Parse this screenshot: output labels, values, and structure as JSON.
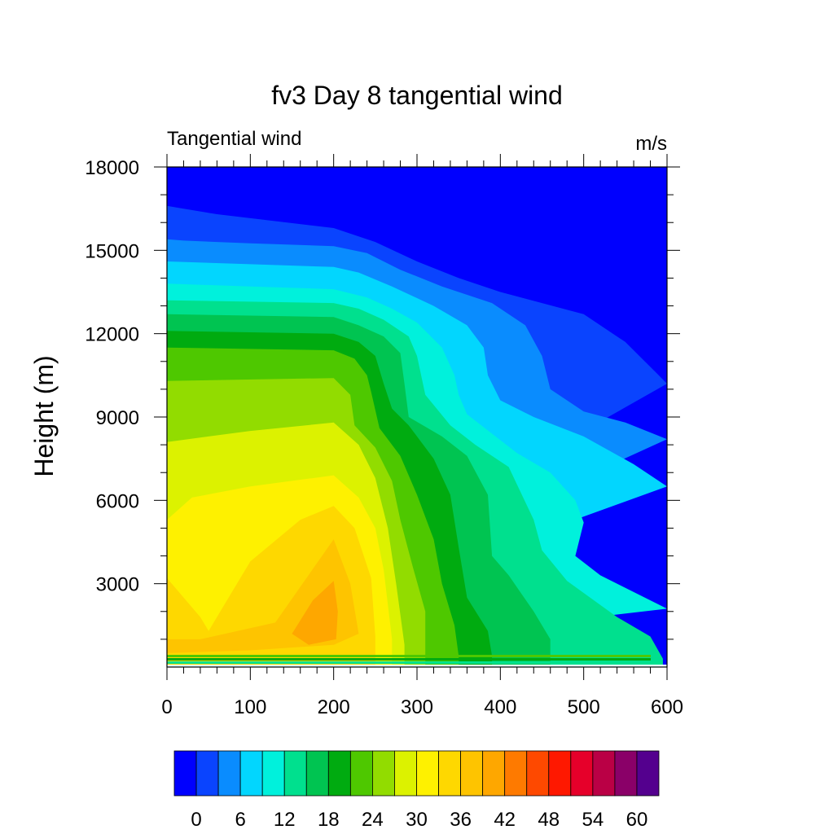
{
  "chart_data": {
    "type": "contour",
    "title": "fv3 Day 8 tangential wind",
    "subtitle_left": "Tangential wind",
    "subtitle_right": "m/s",
    "xlabel": "",
    "ylabel": "Height (m)",
    "xlim": [
      0,
      600
    ],
    "ylim": [
      0,
      18000
    ],
    "x_ticks": [
      0,
      100,
      200,
      300,
      400,
      500,
      600
    ],
    "y_ticks": [
      3000,
      6000,
      9000,
      12000,
      15000,
      18000
    ],
    "colorbar": {
      "levels": [
        0,
        3,
        6,
        9,
        12,
        15,
        18,
        21,
        24,
        27,
        30,
        33,
        36,
        39,
        42,
        45,
        48,
        51,
        54,
        57,
        60
      ],
      "tick_labels": [
        0,
        6,
        12,
        18,
        24,
        30,
        36,
        42,
        48,
        54,
        60
      ],
      "colors": [
        "#0000fe",
        "#0a44fe",
        "#0a8cfe",
        "#02d6fe",
        "#00f1dc",
        "#00e08e",
        "#00c451",
        "#00ab10",
        "#4ec800",
        "#92dc00",
        "#dcf200",
        "#fef100",
        "#fed800",
        "#fec400",
        "#fea700",
        "#fe7a00",
        "#fe4900",
        "#fe1800",
        "#e6002a",
        "#ba0045",
        "#8a0068",
        "#54008e"
      ]
    },
    "contours": [
      {
        "level": 0,
        "points": [
          [
            0,
            16600
          ],
          [
            20,
            16500
          ],
          [
            60,
            16300
          ],
          [
            130,
            16050
          ],
          [
            200,
            15800
          ],
          [
            250,
            15300
          ],
          [
            300,
            14600
          ],
          [
            350,
            14000
          ],
          [
            400,
            13500
          ],
          [
            450,
            13100
          ],
          [
            500,
            12700
          ],
          [
            550,
            11700
          ],
          [
            590,
            10500
          ],
          [
            600,
            10200
          ]
        ]
      },
      {
        "level": 3,
        "points": [
          [
            0,
            15400
          ],
          [
            20,
            15350
          ],
          [
            100,
            15250
          ],
          [
            200,
            15150
          ],
          [
            240,
            14900
          ],
          [
            280,
            14300
          ],
          [
            330,
            13700
          ],
          [
            390,
            13100
          ],
          [
            430,
            12300
          ],
          [
            450,
            11200
          ],
          [
            460,
            10000
          ],
          [
            500,
            9200
          ],
          [
            550,
            8800
          ],
          [
            600,
            8200
          ]
        ]
      },
      {
        "level": 6,
        "points": [
          [
            0,
            14600
          ],
          [
            100,
            14500
          ],
          [
            200,
            14400
          ],
          [
            230,
            14200
          ],
          [
            270,
            13700
          ],
          [
            320,
            13000
          ],
          [
            360,
            12300
          ],
          [
            380,
            11500
          ],
          [
            385,
            10500
          ],
          [
            400,
            9600
          ],
          [
            440,
            9000
          ],
          [
            500,
            8300
          ],
          [
            560,
            7300
          ],
          [
            600,
            6500
          ]
        ]
      },
      {
        "level": 9,
        "points": [
          [
            0,
            13800
          ],
          [
            100,
            13700
          ],
          [
            200,
            13600
          ],
          [
            240,
            13300
          ],
          [
            270,
            12900
          ],
          [
            300,
            12400
          ],
          [
            330,
            11500
          ],
          [
            345,
            10500
          ],
          [
            350,
            9800
          ],
          [
            360,
            9100
          ],
          [
            390,
            8400
          ],
          [
            420,
            7700
          ],
          [
            460,
            7000
          ],
          [
            490,
            6000
          ],
          [
            500,
            5200
          ],
          [
            490,
            4000
          ],
          [
            520,
            3300
          ],
          [
            600,
            2100
          ]
        ]
      },
      {
        "level": 12,
        "points": [
          [
            0,
            13200
          ],
          [
            200,
            13100
          ],
          [
            230,
            12900
          ],
          [
            260,
            12500
          ],
          [
            290,
            11900
          ],
          [
            300,
            11200
          ],
          [
            310,
            9800
          ],
          [
            340,
            8700
          ],
          [
            370,
            8000
          ],
          [
            410,
            7200
          ],
          [
            440,
            5300
          ],
          [
            450,
            4200
          ],
          [
            480,
            3100
          ],
          [
            540,
            1800
          ],
          [
            580,
            1100
          ],
          [
            595,
            300
          ]
        ]
      },
      {
        "level": 15,
        "points": [
          [
            0,
            12700
          ],
          [
            200,
            12600
          ],
          [
            230,
            12300
          ],
          [
            260,
            11900
          ],
          [
            280,
            11300
          ],
          [
            285,
            10200
          ],
          [
            290,
            9000
          ],
          [
            330,
            8300
          ],
          [
            360,
            7600
          ],
          [
            385,
            6200
          ],
          [
            390,
            4000
          ],
          [
            410,
            3300
          ],
          [
            440,
            2000
          ],
          [
            460,
            1000
          ],
          [
            460,
            300
          ]
        ]
      },
      {
        "level": 18,
        "points": [
          [
            0,
            12100
          ],
          [
            200,
            12000
          ],
          [
            230,
            11700
          ],
          [
            250,
            11200
          ],
          [
            260,
            10200
          ],
          [
            270,
            9300
          ],
          [
            290,
            8700
          ],
          [
            320,
            7500
          ],
          [
            340,
            6200
          ],
          [
            350,
            4300
          ],
          [
            360,
            2500
          ],
          [
            385,
            1300
          ],
          [
            390,
            400
          ]
        ]
      },
      {
        "level": 21,
        "points": [
          [
            0,
            11500
          ],
          [
            200,
            11400
          ],
          [
            225,
            11100
          ],
          [
            240,
            10500
          ],
          [
            245,
            9900
          ],
          [
            255,
            8600
          ],
          [
            280,
            7600
          ],
          [
            300,
            6200
          ],
          [
            320,
            4600
          ],
          [
            330,
            3000
          ],
          [
            345,
            1500
          ],
          [
            350,
            400
          ]
        ]
      },
      {
        "level": 24,
        "points": [
          [
            0,
            10300
          ],
          [
            200,
            10400
          ],
          [
            220,
            9800
          ],
          [
            225,
            8700
          ],
          [
            250,
            7900
          ],
          [
            270,
            6700
          ],
          [
            280,
            5300
          ],
          [
            295,
            3600
          ],
          [
            310,
            2000
          ],
          [
            310,
            500
          ]
        ]
      },
      {
        "level": 27,
        "points": [
          [
            0,
            8100
          ],
          [
            100,
            8500
          ],
          [
            200,
            8800
          ],
          [
            230,
            8000
          ],
          [
            250,
            6800
          ],
          [
            265,
            5000
          ],
          [
            275,
            3000
          ],
          [
            285,
            800
          ]
        ]
      },
      {
        "level": 30,
        "points": [
          [
            0,
            5300
          ],
          [
            30,
            6100
          ],
          [
            100,
            6500
          ],
          [
            200,
            6900
          ],
          [
            230,
            6100
          ],
          [
            250,
            5000
          ],
          [
            260,
            3500
          ],
          [
            270,
            1000
          ]
        ]
      },
      {
        "level": 33,
        "points": [
          [
            0,
            3200
          ],
          [
            20,
            2500
          ],
          [
            40,
            1800
          ],
          [
            50,
            1300
          ],
          [
            60,
            1800
          ],
          [
            100,
            3800
          ],
          [
            160,
            5300
          ],
          [
            200,
            5800
          ],
          [
            225,
            5000
          ],
          [
            245,
            3200
          ],
          [
            250,
            1100
          ]
        ]
      },
      {
        "level": 36,
        "points": [
          [
            0,
            1000
          ],
          [
            40,
            1000
          ],
          [
            130,
            1600
          ],
          [
            200,
            4600
          ],
          [
            220,
            3000
          ],
          [
            230,
            1200
          ],
          [
            200,
            800
          ],
          [
            100,
            600
          ],
          [
            0,
            500
          ]
        ]
      },
      {
        "level": 39,
        "points": [
          [
            150,
            1200
          ],
          [
            175,
            2400
          ],
          [
            200,
            3100
          ],
          [
            205,
            2000
          ],
          [
            203,
            1000
          ],
          [
            170,
            800
          ],
          [
            150,
            1200
          ]
        ]
      }
    ]
  }
}
